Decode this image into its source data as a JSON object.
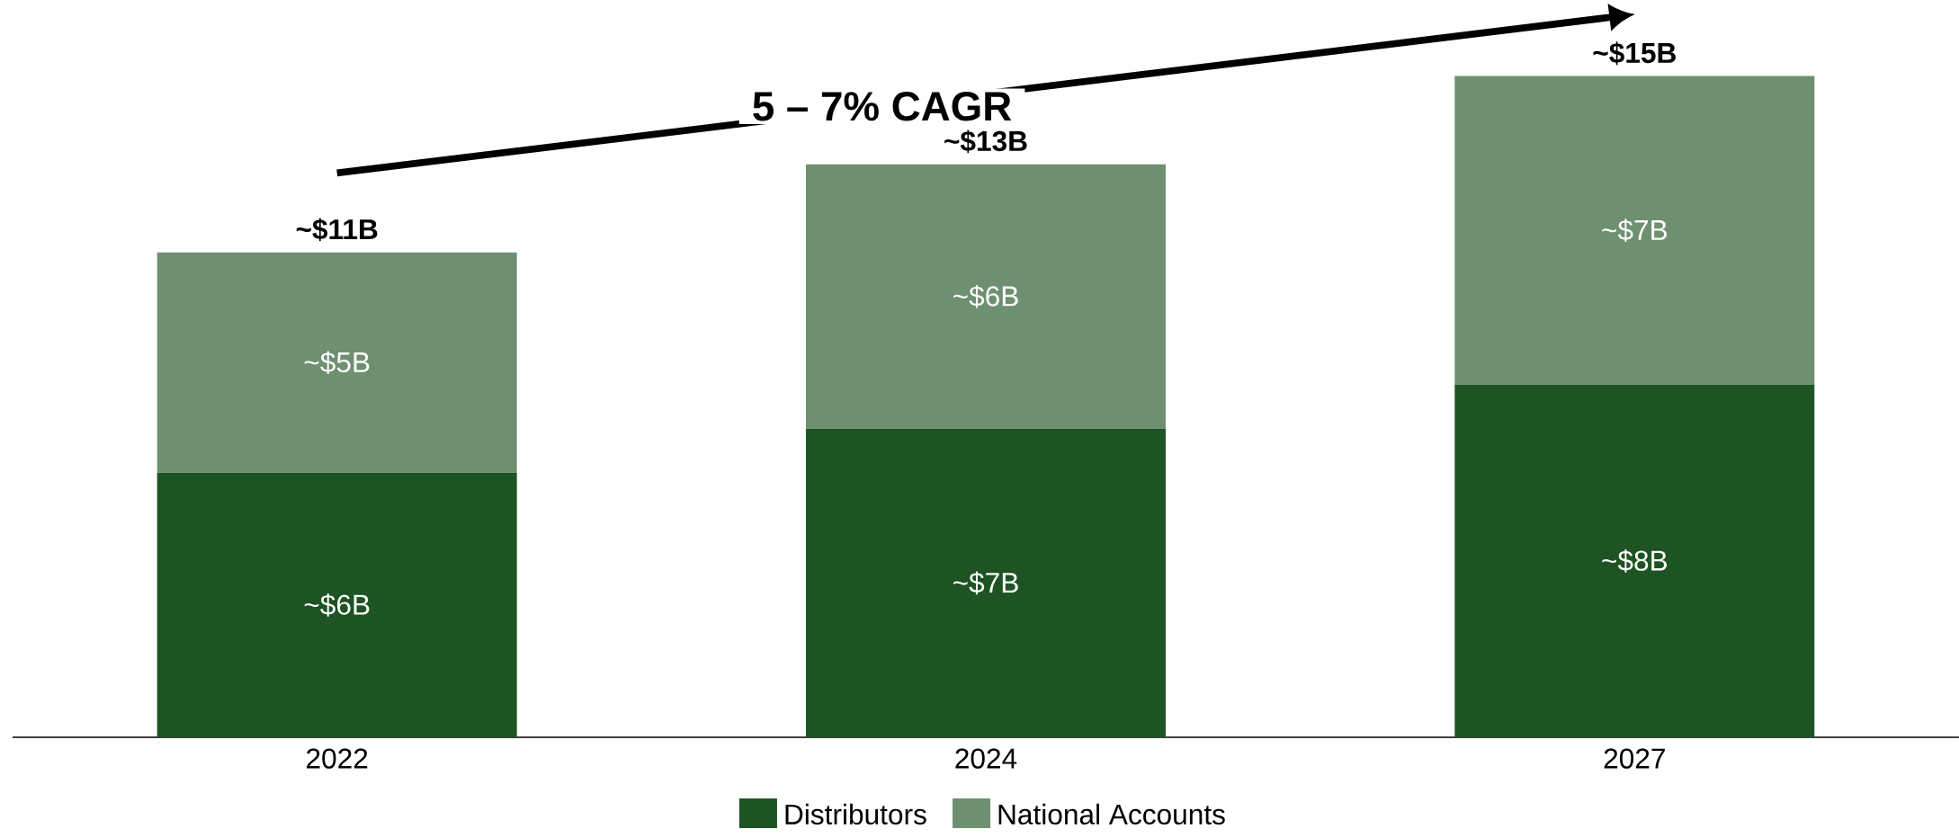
{
  "chart_data": {
    "type": "bar",
    "stacked": true,
    "categories": [
      "2022",
      "2024",
      "2027"
    ],
    "series": [
      {
        "name": "Distributors",
        "color": "#1e5323",
        "values": [
          6,
          7,
          8
        ],
        "value_labels": [
          "~$6B",
          "~$7B",
          "~$8B"
        ]
      },
      {
        "name": "National Accounts",
        "color": "#6e9070",
        "values": [
          5,
          6,
          7
        ],
        "value_labels": [
          "~$5B",
          "~$6B",
          "~$7B"
        ]
      }
    ],
    "totals": [
      "~$11B",
      "~$13B",
      "~$15B"
    ],
    "annotations": [
      "5 – 7% CAGR"
    ],
    "legend": "bottom"
  }
}
